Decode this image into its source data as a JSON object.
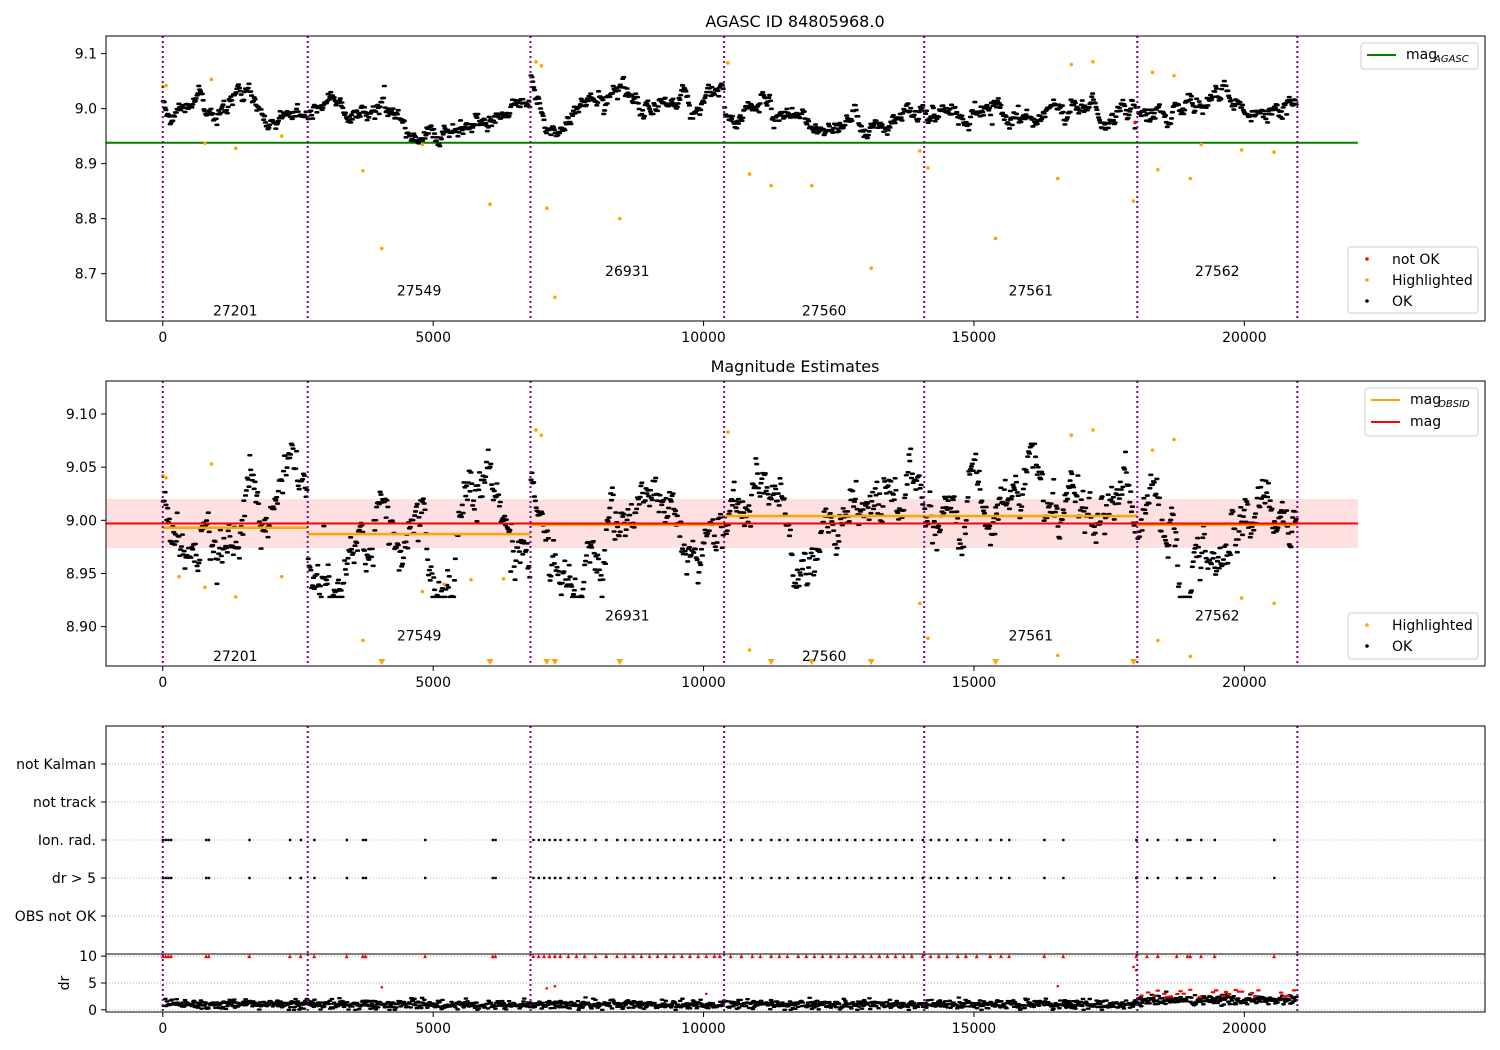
{
  "chart_data": [
    {
      "type": "scatter",
      "title": "AGASC ID 84805968.0",
      "xlabel": "",
      "ylabel": "",
      "xlim": [
        -1050,
        24450
      ],
      "ylim": [
        8.614,
        9.132
      ],
      "xticks": [
        0,
        5000,
        10000,
        15000,
        20000
      ],
      "xtick_labels": [
        "0",
        "5000",
        "10000",
        "15000",
        "20000"
      ],
      "yticks": [
        8.7,
        8.8,
        8.9,
        9.0,
        9.1
      ],
      "ytick_labels": [
        "8.7",
        "8.8",
        "8.9",
        "9.0",
        "9.1"
      ],
      "obsid_boundaries": [
        0,
        2680,
        6800,
        10380,
        14080,
        18020,
        20980
      ],
      "obsid_labels": [
        {
          "text": "27201",
          "x": 1340,
          "y": 8.633
        },
        {
          "text": "27549",
          "x": 4740,
          "y": 8.669
        },
        {
          "text": "26931",
          "x": 8590,
          "y": 8.705
        },
        {
          "text": "27560",
          "x": 12230,
          "y": 8.633
        },
        {
          "text": "27561",
          "x": 16050,
          "y": 8.669
        },
        {
          "text": "27562",
          "x": 19500,
          "y": 8.705
        }
      ],
      "segment_means": [
        8.99,
        8.987,
        9.0,
        9.0,
        8.995,
        9.005
      ],
      "mag_agasc": 8.938,
      "highlighted_outliers": [
        [
          0,
          9.04
        ],
        [
          60,
          9.042
        ],
        [
          900,
          9.053
        ],
        [
          780,
          8.937
        ],
        [
          1350,
          8.928
        ],
        [
          2200,
          8.95
        ],
        [
          3700,
          8.887
        ],
        [
          4050,
          8.746
        ],
        [
          4800,
          8.935
        ],
        [
          6050,
          8.826
        ],
        [
          7100,
          8.819
        ],
        [
          7250,
          8.657
        ],
        [
          8450,
          8.8
        ],
        [
          10850,
          8.881
        ],
        [
          11250,
          8.86
        ],
        [
          12000,
          8.86
        ],
        [
          13100,
          8.71
        ],
        [
          14000,
          8.923
        ],
        [
          14150,
          8.892
        ],
        [
          15400,
          8.764
        ],
        [
          16550,
          8.873
        ],
        [
          17950,
          8.832
        ],
        [
          18400,
          8.889
        ],
        [
          19000,
          8.873
        ],
        [
          19950,
          8.925
        ],
        [
          20550,
          8.921
        ],
        [
          16800,
          9.08
        ],
        [
          17200,
          9.085
        ],
        [
          18300,
          9.066
        ],
        [
          18700,
          9.06
        ],
        [
          10450,
          9.083
        ],
        [
          6900,
          9.085
        ],
        [
          7000,
          9.078
        ],
        [
          19200,
          8.935
        ]
      ],
      "not_ok_points": [
        [
          17980,
          8.975
        ]
      ],
      "legend_top": [
        {
          "label": "mag",
          "sub": "AGASC",
          "color": "#008000"
        }
      ],
      "legend_bottom": [
        {
          "label": "not OK",
          "color": "#ff0000"
        },
        {
          "label": "Highlighted",
          "color": "#ffa500"
        },
        {
          "label": "OK",
          "color": "#000000"
        }
      ]
    },
    {
      "type": "scatter",
      "title": "Magnitude Estimates",
      "xlabel": "",
      "ylabel": "",
      "xlim": [
        -1050,
        24450
      ],
      "ylim": [
        8.863,
        9.131
      ],
      "xticks": [
        0,
        5000,
        10000,
        15000,
        20000
      ],
      "xtick_labels": [
        "0",
        "5000",
        "10000",
        "15000",
        "20000"
      ],
      "yticks": [
        8.9,
        8.95,
        9.0,
        9.05,
        9.1
      ],
      "ytick_labels": [
        "8.90",
        "8.95",
        "9.00",
        "9.05",
        "9.10"
      ],
      "obsid_boundaries": [
        0,
        2680,
        6800,
        10380,
        14080,
        18020,
        20980
      ],
      "obsid_labels": [
        {
          "text": "27201",
          "x": 1340,
          "y": 8.8725
        },
        {
          "text": "27549",
          "x": 4740,
          "y": 8.8915
        },
        {
          "text": "26931",
          "x": 8590,
          "y": 8.9105
        },
        {
          "text": "27560",
          "x": 12230,
          "y": 8.8725
        },
        {
          "text": "27561",
          "x": 16050,
          "y": 8.8915
        },
        {
          "text": "27562",
          "x": 19500,
          "y": 8.9105
        }
      ],
      "mag_mean": 8.997,
      "mag_band": [
        8.974,
        9.02
      ],
      "mag_obsid_segments": [
        {
          "x0": 0,
          "x1": 2680,
          "y": 8.993
        },
        {
          "x0": 2680,
          "x1": 6800,
          "y": 8.987
        },
        {
          "x0": 6800,
          "x1": 10380,
          "y": 8.996
        },
        {
          "x0": 10380,
          "x1": 14080,
          "y": 9.004
        },
        {
          "x0": 14080,
          "x1": 18020,
          "y": 9.004
        },
        {
          "x0": 18020,
          "x1": 20980,
          "y": 8.996
        }
      ],
      "offscale_markers_x": [
        4050,
        6050,
        7100,
        7250,
        8450,
        11250,
        12000,
        13100,
        15400,
        17950
      ],
      "highlighted_outliers": [
        [
          0,
          9.042
        ],
        [
          60,
          9.04
        ],
        [
          900,
          9.053
        ],
        [
          780,
          8.937
        ],
        [
          1350,
          8.928
        ],
        [
          2200,
          8.947
        ],
        [
          3700,
          8.887
        ],
        [
          4800,
          8.933
        ],
        [
          10850,
          8.878
        ],
        [
          14000,
          8.922
        ],
        [
          14150,
          8.889
        ],
        [
          16550,
          8.873
        ],
        [
          18400,
          8.887
        ],
        [
          19000,
          8.872
        ],
        [
          19950,
          8.927
        ],
        [
          20550,
          8.922
        ],
        [
          16800,
          9.08
        ],
        [
          17200,
          9.085
        ],
        [
          18300,
          9.066
        ],
        [
          18700,
          9.076
        ],
        [
          10450,
          9.083
        ],
        [
          6900,
          9.085
        ],
        [
          7000,
          9.08
        ],
        [
          5200,
          8.94
        ],
        [
          5700,
          8.944
        ],
        [
          6300,
          8.945
        ],
        [
          300,
          8.947
        ]
      ],
      "legend_top": [
        {
          "label": "mag",
          "sub": "OBSID",
          "color": "#ffa500"
        },
        {
          "label": "mag",
          "sub": "",
          "color": "#ff0000"
        }
      ],
      "legend_bottom": [
        {
          "label": "Highlighted",
          "color": "#ffa500"
        },
        {
          "label": "OK",
          "color": "#000000"
        }
      ]
    },
    {
      "type": "scatter",
      "title": "",
      "xlabel": "",
      "ylabel": "",
      "xlim": [
        -1050,
        24450
      ],
      "obsid_boundaries": [
        0,
        2680,
        6800,
        10380,
        14080,
        18020,
        20980
      ],
      "flag_rows": [
        "not Kalman",
        "not track",
        "Ion. rad.",
        "dr > 5",
        "OBS not OK"
      ],
      "flag_times": [
        0,
        50,
        100,
        150,
        800,
        850,
        1600,
        2350,
        2550,
        2800,
        3400,
        3700,
        3750,
        4850,
        6100,
        6150,
        6850,
        6950,
        7050,
        7150,
        7250,
        7350,
        7500,
        7650,
        7800,
        8000,
        8200,
        8400,
        8550,
        8700,
        8850,
        9000,
        9150,
        9300,
        9450,
        9600,
        9750,
        9900,
        10050,
        10200,
        10300,
        10500,
        10700,
        10900,
        11050,
        11250,
        11400,
        11550,
        11750,
        11900,
        12050,
        12200,
        12350,
        12500,
        12650,
        12800,
        12950,
        13100,
        13250,
        13400,
        13550,
        13700,
        13850,
        14050,
        14200,
        14350,
        14500,
        14700,
        14850,
        15050,
        15300,
        15500,
        15650,
        16300,
        16650,
        18000,
        18200,
        18400,
        18750,
        18950,
        19000,
        19200,
        19450,
        20550
      ]
    },
    {
      "type": "scatter",
      "title": "",
      "xlabel": "",
      "ylabel": "dr",
      "xlim": [
        -1050,
        24450
      ],
      "ylim": [
        -0.4,
        10.4
      ],
      "xticks": [
        0,
        5000,
        10000,
        15000,
        20000
      ],
      "xtick_labels": [
        "0",
        "5000",
        "10000",
        "15000",
        "20000"
      ],
      "yticks": [
        0,
        5,
        10
      ],
      "ytick_labels": [
        "0",
        "5",
        "10"
      ],
      "obsid_boundaries": [
        0,
        2680,
        6800,
        10380,
        14080,
        18020,
        20980
      ],
      "dr_typical": {
        "main": 1.0,
        "last_segment": 1.8
      },
      "dr_capped_value": 10,
      "dr_capped_times": [
        0,
        50,
        100,
        150,
        800,
        850,
        1600,
        2350,
        2550,
        2800,
        3400,
        3700,
        3750,
        4850,
        6100,
        6150,
        6850,
        6950,
        7050,
        7150,
        7250,
        7350,
        7500,
        7650,
        7800,
        8000,
        8200,
        8400,
        8550,
        8700,
        8850,
        9000,
        9150,
        9300,
        9450,
        9600,
        9750,
        9900,
        10050,
        10200,
        10300,
        10500,
        10700,
        10900,
        11050,
        11250,
        11400,
        11550,
        11750,
        11900,
        12050,
        12200,
        12350,
        12500,
        12650,
        12800,
        12950,
        13100,
        13250,
        13400,
        13550,
        13700,
        13850,
        14050,
        14200,
        14350,
        14500,
        14700,
        14850,
        15050,
        15300,
        15500,
        15650,
        16300,
        16650,
        18000,
        18200,
        18400,
        18750,
        18950,
        19000,
        19200,
        19450,
        20550
      ],
      "dr_mid_points": [
        [
          4050,
          4.2
        ],
        [
          7100,
          4.0
        ],
        [
          7250,
          4.4
        ],
        [
          10050,
          3.0
        ],
        [
          16550,
          4.4
        ],
        [
          17950,
          8.0
        ],
        [
          18000,
          7.4
        ]
      ]
    }
  ]
}
